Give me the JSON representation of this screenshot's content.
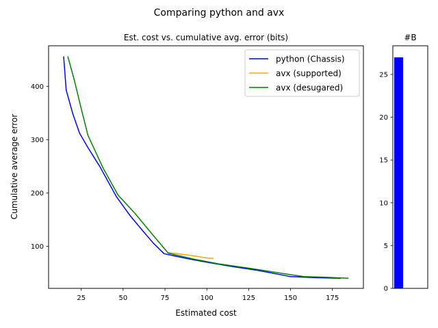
{
  "figure": {
    "suptitle": "Comparing python and avx"
  },
  "chart_data": [
    {
      "type": "line",
      "title": "Est. cost vs. cumulative avg. error (bits)",
      "xlabel": "Estimated cost",
      "ylabel": "Cumulative average error",
      "xlim": [
        5.5,
        193.5
      ],
      "ylim": [
        21,
        476
      ],
      "xticks": [
        25,
        50,
        75,
        100,
        125,
        150,
        175
      ],
      "yticks": [
        100,
        200,
        300,
        400
      ],
      "legend_position": "top-right",
      "series": [
        {
          "name": "python (Chassis)",
          "color": "#0000ff",
          "points": [
            [
              14.5,
              456
            ],
            [
              16,
              393
            ],
            [
              20,
              348
            ],
            [
              24,
              312
            ],
            [
              29,
              285
            ],
            [
              36,
              250
            ],
            [
              46,
              193
            ],
            [
              54,
              158
            ],
            [
              62,
              128
            ],
            [
              68,
              106
            ],
            [
              74.5,
              86
            ],
            [
              88,
              77
            ],
            [
              100,
              70
            ],
            [
              115,
              62
            ],
            [
              130,
              55
            ],
            [
              150,
              43
            ],
            [
              165,
              41
            ],
            [
              180,
              40
            ]
          ]
        },
        {
          "name": "avx (supported)",
          "color": "#ffa500",
          "points": [
            [
              77,
              88
            ],
            [
              90,
              83
            ],
            [
              100,
              78
            ],
            [
              104,
              77
            ]
          ]
        },
        {
          "name": "avx (desugared)",
          "color": "#008000",
          "points": [
            [
              17,
              456
            ],
            [
              21,
              410
            ],
            [
              25,
              358
            ],
            [
              29,
              308
            ],
            [
              38,
              247
            ],
            [
              47,
              196
            ],
            [
              57,
              162
            ],
            [
              67,
              124
            ],
            [
              77,
              87
            ],
            [
              92,
              76
            ],
            [
              107,
              67
            ],
            [
              127,
              58
            ],
            [
              147,
              48
            ],
            [
              158,
              43
            ],
            [
              170,
              42
            ],
            [
              184.5,
              40
            ]
          ]
        }
      ]
    },
    {
      "type": "bar",
      "title": "#B",
      "categories": [
        ""
      ],
      "values": [
        27
      ],
      "color": "#0000ff",
      "ylim": [
        0,
        28.35
      ],
      "yticks": [
        0,
        5,
        10,
        15,
        20,
        25
      ]
    }
  ]
}
